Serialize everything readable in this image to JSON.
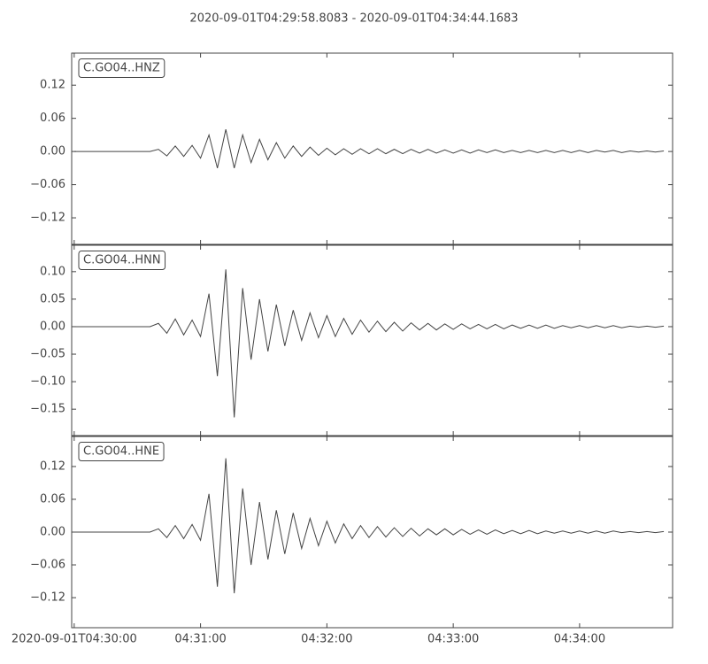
{
  "chart_data": [
    {
      "type": "line",
      "title": "2020-09-01T04:29:58.8083  -  2020-09-01T04:34:44.1683",
      "xlim": [
        "2020-09-01T04:29:58.8083",
        "2020-09-01T04:34:44.1683"
      ],
      "ylim": [
        -0.168,
        0.178
      ],
      "yticks": [
        {
          "value": -0.12,
          "label": "−0.12"
        },
        {
          "value": -0.06,
          "label": "−0.06"
        },
        {
          "value": 0,
          "label": "0.00"
        },
        {
          "value": 0.06,
          "label": "0.06"
        },
        {
          "value": 0.12,
          "label": "0.12"
        }
      ],
      "x": [
        "2020-09-01T04:30:00",
        "2020-09-01T04:30:04",
        "2020-09-01T04:30:08",
        "2020-09-01T04:30:12",
        "2020-09-01T04:30:16",
        "2020-09-01T04:30:20",
        "2020-09-01T04:30:24",
        "2020-09-01T04:30:28",
        "2020-09-01T04:30:32",
        "2020-09-01T04:30:36",
        "2020-09-01T04:30:40",
        "2020-09-01T04:30:44",
        "2020-09-01T04:30:48",
        "2020-09-01T04:30:52",
        "2020-09-01T04:30:56",
        "2020-09-01T04:31:00",
        "2020-09-01T04:31:04",
        "2020-09-01T04:31:08",
        "2020-09-01T04:31:12",
        "2020-09-01T04:31:16",
        "2020-09-01T04:31:20",
        "2020-09-01T04:31:24",
        "2020-09-01T04:31:28",
        "2020-09-01T04:31:32",
        "2020-09-01T04:31:36",
        "2020-09-01T04:31:40",
        "2020-09-01T04:31:44",
        "2020-09-01T04:31:48",
        "2020-09-01T04:31:52",
        "2020-09-01T04:31:56",
        "2020-09-01T04:32:00",
        "2020-09-01T04:32:04",
        "2020-09-01T04:32:08",
        "2020-09-01T04:32:12",
        "2020-09-01T04:32:16",
        "2020-09-01T04:32:20",
        "2020-09-01T04:32:24",
        "2020-09-01T04:32:28",
        "2020-09-01T04:32:32",
        "2020-09-01T04:32:36",
        "2020-09-01T04:32:40",
        "2020-09-01T04:32:44",
        "2020-09-01T04:32:48",
        "2020-09-01T04:32:52",
        "2020-09-01T04:32:56",
        "2020-09-01T04:33:00",
        "2020-09-01T04:33:04",
        "2020-09-01T04:33:08",
        "2020-09-01T04:33:12",
        "2020-09-01T04:33:16",
        "2020-09-01T04:33:20",
        "2020-09-01T04:33:24",
        "2020-09-01T04:33:28",
        "2020-09-01T04:33:32",
        "2020-09-01T04:33:36",
        "2020-09-01T04:33:40",
        "2020-09-01T04:33:44",
        "2020-09-01T04:33:48",
        "2020-09-01T04:33:52",
        "2020-09-01T04:33:56",
        "2020-09-01T04:34:00",
        "2020-09-01T04:34:04",
        "2020-09-01T04:34:08",
        "2020-09-01T04:34:12",
        "2020-09-01T04:34:16",
        "2020-09-01T04:34:20",
        "2020-09-01T04:34:24",
        "2020-09-01T04:34:28",
        "2020-09-01T04:34:32",
        "2020-09-01T04:34:36",
        "2020-09-01T04:34:40"
      ],
      "series": [
        {
          "name": "C.GO04..HNZ",
          "color": "#444444",
          "values": [
            0,
            0,
            0,
            0,
            0,
            0,
            0,
            0,
            0,
            0,
            0.004,
            -0.008,
            0.01,
            -0.009,
            0.011,
            -0.012,
            0.03,
            -0.03,
            0.04,
            -0.03,
            0.03,
            -0.02,
            0.022,
            -0.015,
            0.016,
            -0.012,
            0.01,
            -0.009,
            0.008,
            -0.007,
            0.006,
            -0.006,
            0.005,
            -0.005,
            0.005,
            -0.004,
            0.005,
            -0.004,
            0.004,
            -0.004,
            0.004,
            -0.003,
            0.004,
            -0.003,
            0.003,
            -0.003,
            0.003,
            -0.003,
            0.003,
            -0.002,
            0.003,
            -0.002,
            0.002,
            -0.002,
            0.002,
            -0.002,
            0.002,
            -0.002,
            0.002,
            -0.002,
            0.002,
            -0.002,
            0.002,
            -0.001,
            0.002,
            -0.002,
            0.001,
            -0.001,
            0.001,
            -0.001,
            0.001
          ]
        }
      ]
    },
    {
      "type": "line",
      "xlim": [
        "2020-09-01T04:29:58.8083",
        "2020-09-01T04:34:44.1683"
      ],
      "ylim": [
        -0.198,
        0.148
      ],
      "yticks": [
        {
          "value": -0.15,
          "label": "−0.15"
        },
        {
          "value": -0.1,
          "label": "−0.10"
        },
        {
          "value": -0.05,
          "label": "−0.05"
        },
        {
          "value": 0,
          "label": "0.00"
        },
        {
          "value": 0.05,
          "label": "0.05"
        },
        {
          "value": 0.1,
          "label": "0.10"
        }
      ],
      "x": [
        "2020-09-01T04:30:00",
        "2020-09-01T04:30:04",
        "2020-09-01T04:30:08",
        "2020-09-01T04:30:12",
        "2020-09-01T04:30:16",
        "2020-09-01T04:30:20",
        "2020-09-01T04:30:24",
        "2020-09-01T04:30:28",
        "2020-09-01T04:30:32",
        "2020-09-01T04:30:36",
        "2020-09-01T04:30:40",
        "2020-09-01T04:30:44",
        "2020-09-01T04:30:48",
        "2020-09-01T04:30:52",
        "2020-09-01T04:30:56",
        "2020-09-01T04:31:00",
        "2020-09-01T04:31:04",
        "2020-09-01T04:31:08",
        "2020-09-01T04:31:12",
        "2020-09-01T04:31:16",
        "2020-09-01T04:31:20",
        "2020-09-01T04:31:24",
        "2020-09-01T04:31:28",
        "2020-09-01T04:31:32",
        "2020-09-01T04:31:36",
        "2020-09-01T04:31:40",
        "2020-09-01T04:31:44",
        "2020-09-01T04:31:48",
        "2020-09-01T04:31:52",
        "2020-09-01T04:31:56",
        "2020-09-01T04:32:00",
        "2020-09-01T04:32:04",
        "2020-09-01T04:32:08",
        "2020-09-01T04:32:12",
        "2020-09-01T04:32:16",
        "2020-09-01T04:32:20",
        "2020-09-01T04:32:24",
        "2020-09-01T04:32:28",
        "2020-09-01T04:32:32",
        "2020-09-01T04:32:36",
        "2020-09-01T04:32:40",
        "2020-09-01T04:32:44",
        "2020-09-01T04:32:48",
        "2020-09-01T04:32:52",
        "2020-09-01T04:32:56",
        "2020-09-01T04:33:00",
        "2020-09-01T04:33:04",
        "2020-09-01T04:33:08",
        "2020-09-01T04:33:12",
        "2020-09-01T04:33:16",
        "2020-09-01T04:33:20",
        "2020-09-01T04:33:24",
        "2020-09-01T04:33:28",
        "2020-09-01T04:33:32",
        "2020-09-01T04:33:36",
        "2020-09-01T04:33:40",
        "2020-09-01T04:33:44",
        "2020-09-01T04:33:48",
        "2020-09-01T04:33:52",
        "2020-09-01T04:33:56",
        "2020-09-01T04:34:00",
        "2020-09-01T04:34:04",
        "2020-09-01T04:34:08",
        "2020-09-01T04:34:12",
        "2020-09-01T04:34:16",
        "2020-09-01T04:34:20",
        "2020-09-01T04:34:24",
        "2020-09-01T04:34:28",
        "2020-09-01T04:34:32",
        "2020-09-01T04:34:36",
        "2020-09-01T04:34:40"
      ],
      "series": [
        {
          "name": "C.GO04..HNN",
          "color": "#444444",
          "values": [
            0,
            0,
            0,
            0,
            0,
            0,
            0,
            0,
            0,
            0,
            0.006,
            -0.012,
            0.014,
            -0.015,
            0.012,
            -0.018,
            0.06,
            -0.09,
            0.104,
            -0.165,
            0.07,
            -0.06,
            0.05,
            -0.045,
            0.04,
            -0.035,
            0.03,
            -0.025,
            0.025,
            -0.02,
            0.02,
            -0.018,
            0.015,
            -0.014,
            0.012,
            -0.01,
            0.01,
            -0.009,
            0.008,
            -0.008,
            0.007,
            -0.006,
            0.006,
            -0.006,
            0.005,
            -0.005,
            0.005,
            -0.004,
            0.004,
            -0.004,
            0.004,
            -0.004,
            0.003,
            -0.003,
            0.003,
            -0.003,
            0.003,
            -0.003,
            0.002,
            -0.002,
            0.002,
            -0.002,
            0.002,
            -0.002,
            0.002,
            -0.002,
            0.001,
            -0.001,
            0.001,
            -0.001,
            0.001
          ]
        }
      ]
    },
    {
      "type": "line",
      "xlim": [
        "2020-09-01T04:29:58.8083",
        "2020-09-01T04:34:44.1683"
      ],
      "ylim": [
        -0.175,
        0.175
      ],
      "yticks": [
        {
          "value": -0.12,
          "label": "−0.12"
        },
        {
          "value": -0.06,
          "label": "−0.06"
        },
        {
          "value": 0,
          "label": "0.00"
        },
        {
          "value": 0.06,
          "label": "0.06"
        },
        {
          "value": 0.12,
          "label": "0.12"
        }
      ],
      "xticks": [
        "2020-09-01T04:30:00",
        {
          "value": "2020-09-01T04:31:00",
          "label": "04:31:00"
        },
        {
          "value": "2020-09-01T04:32:00",
          "label": "04:32:00"
        },
        {
          "value": "2020-09-01T04:33:00",
          "label": "04:33:00"
        },
        {
          "value": "2020-09-01T04:34:00",
          "label": "04:34:00"
        }
      ],
      "x": [
        "2020-09-01T04:30:00",
        "2020-09-01T04:30:04",
        "2020-09-01T04:30:08",
        "2020-09-01T04:30:12",
        "2020-09-01T04:30:16",
        "2020-09-01T04:30:20",
        "2020-09-01T04:30:24",
        "2020-09-01T04:30:28",
        "2020-09-01T04:30:32",
        "2020-09-01T04:30:36",
        "2020-09-01T04:30:40",
        "2020-09-01T04:30:44",
        "2020-09-01T04:30:48",
        "2020-09-01T04:30:52",
        "2020-09-01T04:30:56",
        "2020-09-01T04:31:00",
        "2020-09-01T04:31:04",
        "2020-09-01T04:31:08",
        "2020-09-01T04:31:12",
        "2020-09-01T04:31:16",
        "2020-09-01T04:31:20",
        "2020-09-01T04:31:24",
        "2020-09-01T04:31:28",
        "2020-09-01T04:31:32",
        "2020-09-01T04:31:36",
        "2020-09-01T04:31:40",
        "2020-09-01T04:31:44",
        "2020-09-01T04:31:48",
        "2020-09-01T04:31:52",
        "2020-09-01T04:31:56",
        "2020-09-01T04:32:00",
        "2020-09-01T04:32:04",
        "2020-09-01T04:32:08",
        "2020-09-01T04:32:12",
        "2020-09-01T04:32:16",
        "2020-09-01T04:32:20",
        "2020-09-01T04:32:24",
        "2020-09-01T04:32:28",
        "2020-09-01T04:32:32",
        "2020-09-01T04:32:36",
        "2020-09-01T04:32:40",
        "2020-09-01T04:32:44",
        "2020-09-01T04:32:48",
        "2020-09-01T04:32:52",
        "2020-09-01T04:32:56",
        "2020-09-01T04:33:00",
        "2020-09-01T04:33:04",
        "2020-09-01T04:33:08",
        "2020-09-01T04:33:12",
        "2020-09-01T04:33:16",
        "2020-09-01T04:33:20",
        "2020-09-01T04:33:24",
        "2020-09-01T04:33:28",
        "2020-09-01T04:33:32",
        "2020-09-01T04:33:36",
        "2020-09-01T04:33:40",
        "2020-09-01T04:33:44",
        "2020-09-01T04:33:48",
        "2020-09-01T04:33:52",
        "2020-09-01T04:33:56",
        "2020-09-01T04:34:00",
        "2020-09-01T04:34:04",
        "2020-09-01T04:34:08",
        "2020-09-01T04:34:12",
        "2020-09-01T04:34:16",
        "2020-09-01T04:34:20",
        "2020-09-01T04:34:24",
        "2020-09-01T04:34:28",
        "2020-09-01T04:34:32",
        "2020-09-01T04:34:36",
        "2020-09-01T04:34:40"
      ],
      "series": [
        {
          "name": "C.GO04..HNE",
          "color": "#444444",
          "values": [
            0,
            0,
            0,
            0,
            0,
            0,
            0,
            0,
            0,
            0,
            0.006,
            -0.01,
            0.012,
            -0.012,
            0.014,
            -0.015,
            0.07,
            -0.1,
            0.135,
            -0.112,
            0.08,
            -0.06,
            0.055,
            -0.05,
            0.04,
            -0.04,
            0.035,
            -0.03,
            0.025,
            -0.025,
            0.02,
            -0.02,
            0.015,
            -0.012,
            0.012,
            -0.01,
            0.01,
            -0.009,
            0.008,
            -0.008,
            0.007,
            -0.007,
            0.006,
            -0.005,
            0.006,
            -0.005,
            0.005,
            -0.004,
            0.004,
            -0.004,
            0.004,
            -0.003,
            0.003,
            -0.003,
            0.003,
            -0.003,
            0.002,
            -0.002,
            0.002,
            -0.002,
            0.002,
            -0.002,
            0.002,
            -0.002,
            0.002,
            -0.001,
            0.001,
            -0.001,
            0.001,
            -0.001,
            0.001
          ]
        }
      ]
    }
  ]
}
